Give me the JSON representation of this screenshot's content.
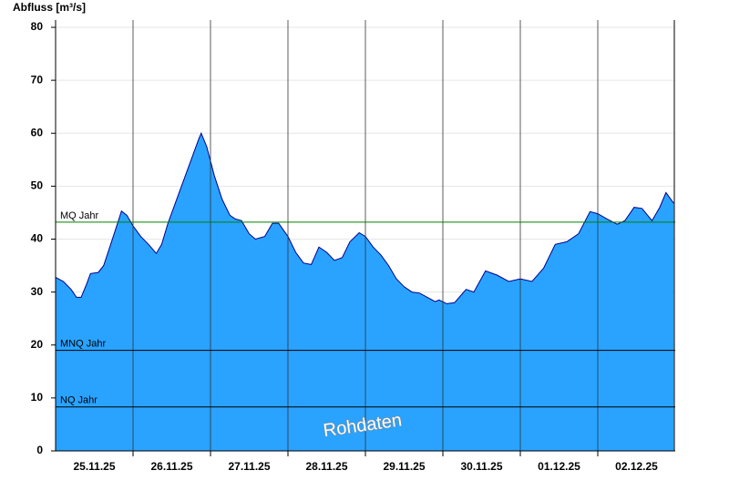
{
  "chart_data": {
    "type": "area",
    "title": "Abfluss [m³/s]",
    "watermark": "Rohdaten",
    "x": [
      0,
      0.1,
      0.2,
      0.27,
      0.33,
      0.4,
      0.45,
      0.55,
      0.62,
      0.7,
      0.8,
      0.85,
      0.92,
      1.0,
      1.1,
      1.2,
      1.3,
      1.37,
      1.45,
      1.55,
      1.65,
      1.75,
      1.85,
      1.88,
      1.95,
      2.05,
      2.15,
      2.25,
      2.32,
      2.4,
      2.5,
      2.58,
      2.7,
      2.8,
      2.88,
      3.0,
      3.1,
      3.2,
      3.3,
      3.4,
      3.5,
      3.6,
      3.7,
      3.8,
      3.92,
      4.0,
      4.1,
      4.2,
      4.3,
      4.4,
      4.5,
      4.6,
      4.7,
      4.8,
      4.9,
      4.95,
      5.05,
      5.15,
      5.3,
      5.4,
      5.55,
      5.7,
      5.85,
      6.0,
      6.15,
      6.3,
      6.45,
      6.6,
      6.75,
      6.9,
      7.0,
      7.12,
      7.25,
      7.35,
      7.47,
      7.57,
      7.7,
      7.8,
      7.88,
      7.98
    ],
    "series": [
      {
        "color": "#29a3ff",
        "line_color": "#00008b",
        "values": [
          32.8,
          32,
          30.5,
          29,
          29,
          31.5,
          33.5,
          33.7,
          35,
          38.5,
          43,
          45.3,
          44.5,
          42.5,
          40.5,
          39,
          37.3,
          39,
          43,
          47,
          51,
          55,
          59,
          60,
          57.5,
          52,
          47.5,
          44.5,
          43.8,
          43.5,
          41,
          40,
          40.5,
          43,
          43,
          40.5,
          37.5,
          35.5,
          35.2,
          38.5,
          37.5,
          36,
          36.5,
          39.5,
          41.2,
          40.5,
          38.5,
          37,
          35,
          32.5,
          31,
          30,
          29.8,
          29,
          28.2,
          28.5,
          27.8,
          28,
          30.5,
          30,
          34,
          33.2,
          32,
          32.5,
          32,
          34.5,
          39,
          39.5,
          41,
          45.2,
          44.8,
          43.8,
          42.8,
          43.5,
          46,
          45.8,
          43.5,
          46,
          48.8,
          46.8
        ]
      }
    ],
    "xlim": [
      0,
      8
    ],
    "xticks": [
      {
        "value": 0.5,
        "label": "25.11.25"
      },
      {
        "value": 1.5,
        "label": "26.11.25"
      },
      {
        "value": 2.5,
        "label": "27.11.25"
      },
      {
        "value": 3.5,
        "label": "28.11.25"
      },
      {
        "value": 4.5,
        "label": "29.11.25"
      },
      {
        "value": 5.5,
        "label": "30.11.25"
      },
      {
        "value": 6.5,
        "label": "01.12.25"
      },
      {
        "value": 7.5,
        "label": "02.12.25"
      }
    ],
    "xgrid": [
      1,
      2,
      3,
      4,
      5,
      6,
      7
    ],
    "ylim": [
      0,
      80
    ],
    "yticks": [
      0,
      10,
      20,
      30,
      40,
      50,
      60,
      70,
      80
    ],
    "grid": true,
    "reference_lines": [
      {
        "label": "MQ Jahr",
        "value": 43.2,
        "color": "#008000"
      },
      {
        "label": "MNQ Jahr",
        "value": 19,
        "color": "#000000"
      },
      {
        "label": "NQ Jahr",
        "value": 8.3,
        "color": "#000000"
      }
    ]
  }
}
